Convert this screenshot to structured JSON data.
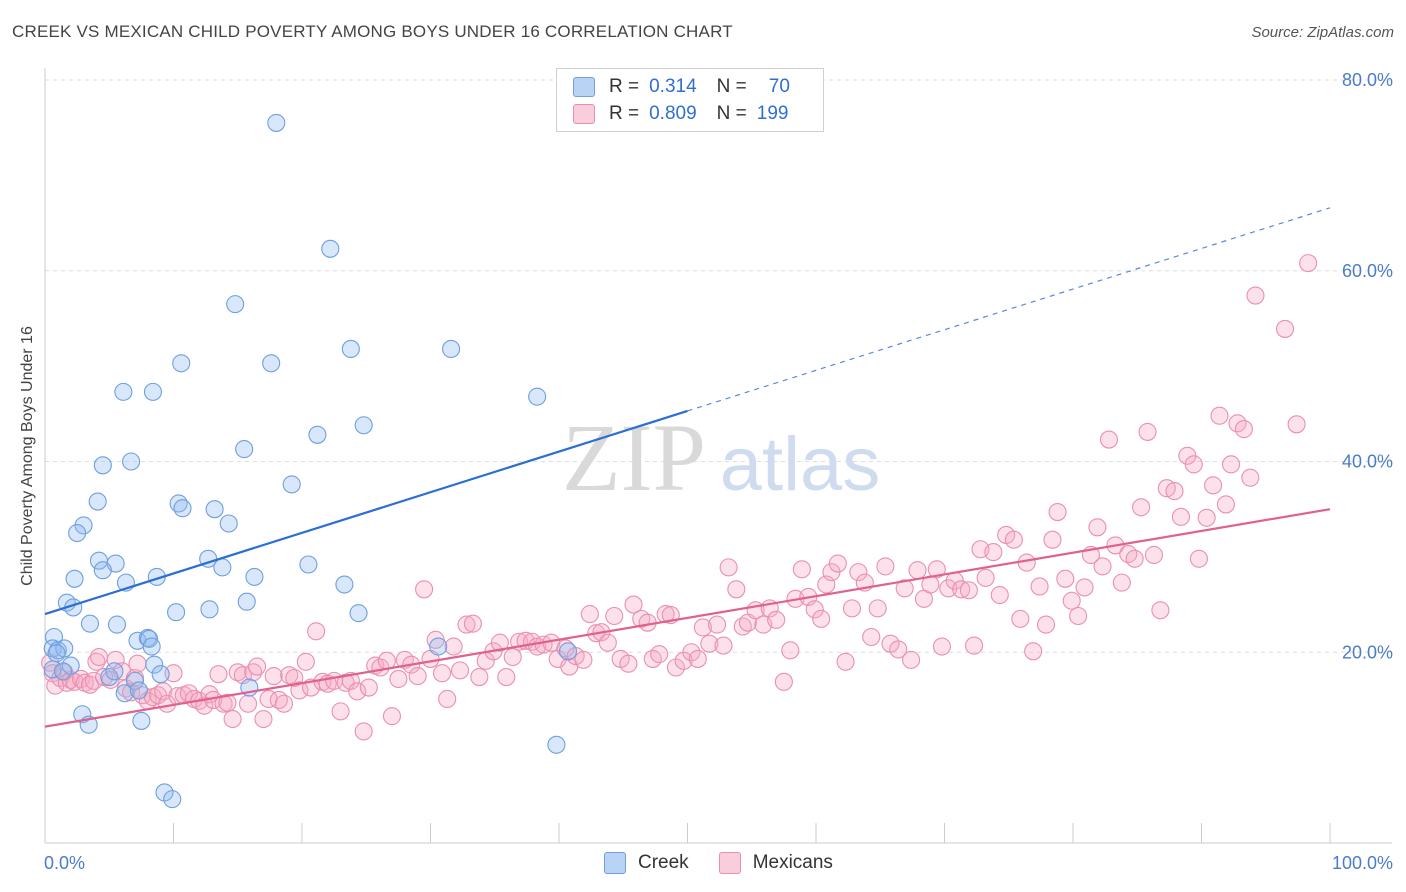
{
  "header": {
    "title": "CREEK VS MEXICAN CHILD POVERTY AMONG BOYS UNDER 16 CORRELATION CHART",
    "source": "Source: ZipAtlas.com"
  },
  "watermark": {
    "zip": "ZIP",
    "atlas": "atlas"
  },
  "legend": {
    "rows": [
      {
        "r_label": "R =",
        "r_value": "0.314",
        "n_label": "N =",
        "n_value": "70",
        "color": "#a9c8f2"
      },
      {
        "r_label": "R =",
        "r_value": "0.809",
        "n_label": "N =",
        "n_value": "199",
        "color": "#f6bcd0"
      }
    ]
  },
  "bottom_legend": {
    "creek": "Creek",
    "mexicans": "Mexicans"
  },
  "colors": {
    "creek_fill": "rgba(143,185,240,0.35)",
    "creek_stroke": "#6f9fe0",
    "creek_line": "#2a6fd1",
    "mex_fill": "rgba(245,170,195,0.35)",
    "mex_stroke": "#ea8fb0",
    "mex_line": "#e0608e",
    "axis_text": "#4a7cc9",
    "grid": "#dddddd"
  },
  "chart_data": {
    "type": "scatter",
    "title": "CREEK VS MEXICAN CHILD POVERTY AMONG BOYS UNDER 16 CORRELATION CHART",
    "xlabel": "",
    "ylabel": "Child Poverty Among Boys Under 16",
    "xlim": [
      0,
      100
    ],
    "ylim": [
      0,
      80
    ],
    "x_tick_labels": [
      "0.0%",
      "100.0%"
    ],
    "y_ticks": [
      20,
      40,
      60,
      80
    ],
    "y_tick_labels": [
      "20.0%",
      "40.0%",
      "60.0%",
      "80.0%"
    ],
    "grid": true,
    "legend_placement": "top-center",
    "series": [
      {
        "name": "Creek",
        "r": 0.314,
        "n": 70,
        "trend": {
          "x0": 0,
          "y0": 24.0,
          "x1": 50,
          "y1": 45.3,
          "dash_to_x": 100,
          "dash_to_y": 66.6
        },
        "points": [
          [
            18,
            75.5
          ],
          [
            22.2,
            62.3
          ],
          [
            14.8,
            56.5
          ],
          [
            23.8,
            51.8
          ],
          [
            31.6,
            51.8
          ],
          [
            10.6,
            50.3
          ],
          [
            17.6,
            50.3
          ],
          [
            6.1,
            47.3
          ],
          [
            8.4,
            47.3
          ],
          [
            38.3,
            46.8
          ],
          [
            24.8,
            43.8
          ],
          [
            21.2,
            42.8
          ],
          [
            15.5,
            41.3
          ],
          [
            6.7,
            40.0
          ],
          [
            4.5,
            39.6
          ],
          [
            19.2,
            37.6
          ],
          [
            4.1,
            35.8
          ],
          [
            10.4,
            35.6
          ],
          [
            10.7,
            35.1
          ],
          [
            13.2,
            35.0
          ],
          [
            3.0,
            33.3
          ],
          [
            14.3,
            33.5
          ],
          [
            2.5,
            32.5
          ],
          [
            4.2,
            29.6
          ],
          [
            5.5,
            29.3
          ],
          [
            12.7,
            29.8
          ],
          [
            4.5,
            28.6
          ],
          [
            13.8,
            28.9
          ],
          [
            20.5,
            29.2
          ],
          [
            2.3,
            27.7
          ],
          [
            6.3,
            27.3
          ],
          [
            8.7,
            27.9
          ],
          [
            16.3,
            27.9
          ],
          [
            23.3,
            27.1
          ],
          [
            1.7,
            25.2
          ],
          [
            15.7,
            25.3
          ],
          [
            2.2,
            24.7
          ],
          [
            12.8,
            24.5
          ],
          [
            10.2,
            24.2
          ],
          [
            24.4,
            24.1
          ],
          [
            3.5,
            23.0
          ],
          [
            5.6,
            22.9
          ],
          [
            0.7,
            21.6
          ],
          [
            7.2,
            21.2
          ],
          [
            8.0,
            21.5
          ],
          [
            8.1,
            21.4
          ],
          [
            8.3,
            20.6
          ],
          [
            0.6,
            20.4
          ],
          [
            1.0,
            20.2
          ],
          [
            1.5,
            20.4
          ],
          [
            0.9,
            19.9
          ],
          [
            2.0,
            18.6
          ],
          [
            8.5,
            18.7
          ],
          [
            0.6,
            18.2
          ],
          [
            1.4,
            18.0
          ],
          [
            40.7,
            20.1
          ],
          [
            30.6,
            20.6
          ],
          [
            5.0,
            17.4
          ],
          [
            5.4,
            18.0
          ],
          [
            9.0,
            17.7
          ],
          [
            7.0,
            17.0
          ],
          [
            15.9,
            16.3
          ],
          [
            6.2,
            15.7
          ],
          [
            7.3,
            16.0
          ],
          [
            2.9,
            13.5
          ],
          [
            3.4,
            12.4
          ],
          [
            7.5,
            12.8
          ],
          [
            39.8,
            10.3
          ],
          [
            9.3,
            5.3
          ],
          [
            9.9,
            4.6
          ]
        ]
      },
      {
        "name": "Mexicans",
        "r": 0.809,
        "n": 199,
        "trend": {
          "x0": 0,
          "y0": 12.2,
          "x1": 100,
          "y1": 35.0
        },
        "points": [
          [
            0.4,
            18.9
          ],
          [
            0.6,
            17.8
          ],
          [
            0.8,
            16.5
          ],
          [
            1.2,
            17.3
          ],
          [
            1.5,
            17.9
          ],
          [
            1.7,
            16.8
          ],
          [
            2.0,
            17.1
          ],
          [
            2.3,
            16.9
          ],
          [
            2.8,
            17.2
          ],
          [
            3.1,
            16.8
          ],
          [
            3.5,
            16.6
          ],
          [
            3.8,
            17.0
          ],
          [
            4.0,
            19.0
          ],
          [
            4.2,
            19.5
          ],
          [
            4.6,
            17.4
          ],
          [
            5.1,
            17.1
          ],
          [
            5.5,
            19.2
          ],
          [
            6.0,
            18.0
          ],
          [
            6.3,
            16.2
          ],
          [
            6.7,
            15.8
          ],
          [
            7.0,
            17.3
          ],
          [
            7.2,
            18.8
          ],
          [
            7.6,
            15.5
          ],
          [
            8.0,
            14.9
          ],
          [
            8.4,
            15.3
          ],
          [
            8.8,
            15.5
          ],
          [
            9.2,
            15.9
          ],
          [
            9.5,
            14.6
          ],
          [
            10.0,
            17.8
          ],
          [
            10.3,
            15.4
          ],
          [
            10.8,
            15.5
          ],
          [
            11.2,
            15.7
          ],
          [
            11.6,
            15.1
          ],
          [
            12.0,
            14.9
          ],
          [
            12.4,
            14.4
          ],
          [
            12.8,
            15.6
          ],
          [
            13.1,
            15.0
          ],
          [
            13.5,
            17.7
          ],
          [
            13.9,
            14.6
          ],
          [
            14.2,
            14.7
          ],
          [
            14.6,
            13.0
          ],
          [
            15.0,
            17.9
          ],
          [
            15.4,
            17.6
          ],
          [
            15.8,
            14.6
          ],
          [
            16.2,
            17.9
          ],
          [
            16.5,
            18.5
          ],
          [
            17.0,
            13.0
          ],
          [
            17.4,
            15.1
          ],
          [
            17.8,
            17.5
          ],
          [
            18.2,
            15.0
          ],
          [
            18.6,
            14.6
          ],
          [
            19.0,
            17.6
          ],
          [
            19.4,
            17.3
          ],
          [
            19.8,
            16.0
          ],
          [
            20.3,
            19.0
          ],
          [
            20.7,
            16.3
          ],
          [
            21.1,
            22.2
          ],
          [
            21.6,
            16.9
          ],
          [
            22.0,
            16.7
          ],
          [
            22.5,
            17.0
          ],
          [
            23.0,
            13.8
          ],
          [
            23.4,
            16.8
          ],
          [
            23.8,
            17.0
          ],
          [
            24.3,
            15.9
          ],
          [
            24.8,
            11.7
          ],
          [
            25.2,
            16.3
          ],
          [
            25.7,
            18.6
          ],
          [
            26.1,
            18.4
          ],
          [
            26.6,
            19.1
          ],
          [
            27.0,
            13.3
          ],
          [
            27.5,
            17.2
          ],
          [
            28.0,
            19.2
          ],
          [
            28.5,
            18.7
          ],
          [
            29.0,
            17.5
          ],
          [
            29.5,
            26.6
          ],
          [
            30.0,
            19.3
          ],
          [
            30.4,
            21.3
          ],
          [
            30.9,
            17.8
          ],
          [
            31.3,
            15.1
          ],
          [
            31.8,
            20.6
          ],
          [
            32.3,
            18.1
          ],
          [
            32.8,
            22.9
          ],
          [
            33.3,
            23.0
          ],
          [
            33.8,
            17.4
          ],
          [
            34.3,
            19.1
          ],
          [
            34.9,
            20.1
          ],
          [
            35.4,
            21.0
          ],
          [
            35.9,
            17.4
          ],
          [
            36.4,
            19.5
          ],
          [
            36.9,
            21.1
          ],
          [
            37.4,
            21.2
          ],
          [
            37.9,
            21.1
          ],
          [
            38.3,
            20.6
          ],
          [
            38.8,
            20.8
          ],
          [
            39.4,
            21.0
          ],
          [
            39.9,
            19.3
          ],
          [
            40.5,
            20.4
          ],
          [
            40.8,
            18.5
          ],
          [
            41.3,
            19.6
          ],
          [
            41.9,
            19.2
          ],
          [
            42.4,
            24.0
          ],
          [
            42.9,
            22.0
          ],
          [
            43.3,
            22.1
          ],
          [
            43.8,
            21.0
          ],
          [
            44.3,
            23.8
          ],
          [
            44.8,
            19.3
          ],
          [
            45.4,
            18.8
          ],
          [
            45.8,
            25.0
          ],
          [
            46.4,
            23.5
          ],
          [
            46.9,
            23.1
          ],
          [
            47.3,
            19.3
          ],
          [
            47.8,
            19.8
          ],
          [
            48.3,
            24.0
          ],
          [
            48.7,
            23.9
          ],
          [
            49.1,
            18.4
          ],
          [
            49.7,
            19.1
          ],
          [
            50.3,
            20.0
          ],
          [
            50.8,
            19.3
          ],
          [
            51.2,
            22.6
          ],
          [
            51.7,
            20.9
          ],
          [
            52.3,
            22.9
          ],
          [
            52.8,
            20.7
          ],
          [
            53.2,
            28.9
          ],
          [
            53.8,
            26.6
          ],
          [
            54.3,
            22.7
          ],
          [
            54.7,
            23.1
          ],
          [
            55.3,
            24.4
          ],
          [
            55.9,
            22.9
          ],
          [
            56.4,
            24.6
          ],
          [
            56.9,
            23.4
          ],
          [
            57.5,
            16.9
          ],
          [
            58.0,
            20.2
          ],
          [
            58.4,
            25.6
          ],
          [
            58.9,
            28.7
          ],
          [
            59.4,
            25.8
          ],
          [
            59.9,
            24.5
          ],
          [
            60.4,
            23.5
          ],
          [
            60.8,
            27.1
          ],
          [
            61.2,
            28.4
          ],
          [
            61.7,
            29.3
          ],
          [
            62.3,
            19.0
          ],
          [
            62.8,
            24.6
          ],
          [
            63.3,
            28.4
          ],
          [
            63.8,
            27.3
          ],
          [
            64.3,
            21.6
          ],
          [
            64.8,
            24.6
          ],
          [
            65.4,
            29.0
          ],
          [
            65.8,
            20.9
          ],
          [
            66.4,
            20.3
          ],
          [
            66.9,
            26.7
          ],
          [
            67.4,
            19.2
          ],
          [
            67.9,
            28.6
          ],
          [
            68.4,
            25.6
          ],
          [
            68.9,
            27.1
          ],
          [
            69.4,
            28.7
          ],
          [
            69.8,
            20.6
          ],
          [
            70.3,
            26.7
          ],
          [
            70.8,
            27.5
          ],
          [
            71.3,
            26.6
          ],
          [
            71.9,
            26.5
          ],
          [
            72.3,
            20.7
          ],
          [
            72.8,
            30.8
          ],
          [
            73.2,
            27.8
          ],
          [
            73.8,
            30.5
          ],
          [
            74.3,
            26.0
          ],
          [
            74.8,
            32.3
          ],
          [
            75.4,
            31.8
          ],
          [
            75.9,
            23.5
          ],
          [
            76.4,
            29.4
          ],
          [
            76.9,
            20.1
          ],
          [
            77.4,
            26.9
          ],
          [
            77.9,
            22.9
          ],
          [
            78.4,
            31.8
          ],
          [
            78.8,
            34.7
          ],
          [
            79.4,
            27.7
          ],
          [
            79.9,
            25.4
          ],
          [
            80.4,
            23.8
          ],
          [
            80.9,
            26.8
          ],
          [
            81.4,
            30.2
          ],
          [
            81.9,
            33.1
          ],
          [
            82.3,
            29.0
          ],
          [
            82.8,
            42.3
          ],
          [
            83.3,
            31.2
          ],
          [
            83.8,
            27.3
          ],
          [
            84.3,
            30.3
          ],
          [
            84.8,
            29.8
          ],
          [
            85.3,
            35.2
          ],
          [
            85.8,
            43.1
          ],
          [
            86.3,
            30.2
          ],
          [
            86.8,
            24.4
          ],
          [
            87.3,
            37.2
          ],
          [
            87.9,
            36.9
          ],
          [
            88.4,
            34.2
          ],
          [
            88.9,
            40.6
          ],
          [
            89.4,
            39.7
          ],
          [
            89.8,
            29.8
          ],
          [
            90.4,
            34.1
          ],
          [
            90.9,
            37.5
          ],
          [
            91.4,
            44.8
          ],
          [
            91.9,
            35.5
          ],
          [
            92.3,
            39.7
          ],
          [
            92.8,
            44.0
          ],
          [
            93.3,
            43.4
          ],
          [
            93.8,
            38.3
          ],
          [
            94.2,
            57.4
          ],
          [
            96.5,
            53.9
          ],
          [
            97.4,
            43.9
          ],
          [
            98.3,
            60.8
          ]
        ]
      }
    ]
  }
}
